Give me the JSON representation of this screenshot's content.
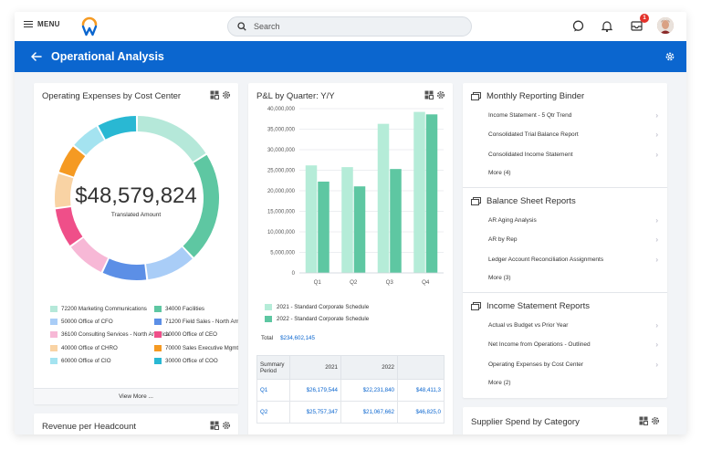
{
  "topbar": {
    "menu_label": "MENU",
    "search_placeholder": "Search",
    "inbox_badge": "1"
  },
  "header": {
    "title": "Operational Analysis"
  },
  "opex": {
    "title": "Operating Expenses by Cost Center",
    "center_value": "$48,579,824",
    "center_label": "Translated Amount",
    "view_more": "View More ...",
    "legend": [
      {
        "label": "72200 Marketing Communications",
        "color": "#b5e8d9"
      },
      {
        "label": "34000 Facilities",
        "color": "#5ec7a2"
      },
      {
        "label": "50000 Office of CFO",
        "color": "#a9cdf7"
      },
      {
        "label": "71200 Field Sales - North America",
        "color": "#5c8fe6"
      },
      {
        "label": "36100 Consulting Services - North America",
        "color": "#f7b8d6"
      },
      {
        "label": "10000 Office of CEO",
        "color": "#ef4f89"
      },
      {
        "label": "40000 Office of CHRO",
        "color": "#f9d3a4"
      },
      {
        "label": "70000 Sales Executive Mgmt",
        "color": "#f59a23"
      },
      {
        "label": "60000 Office of CIO",
        "color": "#a4e3f0"
      },
      {
        "label": "30000 Office of COO",
        "color": "#29b8d3"
      }
    ],
    "chart_data": {
      "type": "pie",
      "categories": [
        "72200 Marketing Communications",
        "34000 Facilities",
        "50000 Office of CFO",
        "71200 Field Sales - North America",
        "36100 Consulting Services - North America",
        "10000 Office of CEO",
        "40000 Office of CHRO",
        "70000 Sales Executive Mgmt",
        "60000 Office of CIO",
        "30000 Office of COO"
      ],
      "values": [
        16,
        22,
        10,
        9,
        8,
        8,
        7,
        6,
        6,
        8
      ]
    }
  },
  "revenue_card": {
    "title": "Revenue per Headcount"
  },
  "pl": {
    "title": "P&L by Quarter: Y/Y",
    "total_label": "Total",
    "total_value": "$234,602,145",
    "legend": [
      {
        "label": "2021 - Standard Corporate Schedule",
        "color": "#b5ecd8"
      },
      {
        "label": "2022 - Standard Corporate Schedule",
        "color": "#5ec7a2"
      }
    ],
    "table": {
      "headers": [
        "Summary Period",
        "2021",
        "2022",
        ""
      ],
      "rows": [
        [
          "Q1",
          "$26,179,544",
          "$22,231,840",
          "$48,411,3"
        ],
        [
          "Q2",
          "$25,757,347",
          "$21,067,662",
          "$46,825,0"
        ]
      ]
    },
    "chart_data": {
      "type": "bar",
      "categories": [
        "Q1",
        "Q2",
        "Q3",
        "Q4"
      ],
      "series": [
        {
          "name": "2021 - Standard Corporate Schedule",
          "values": [
            26179544,
            25757347,
            36300000,
            39200000
          ]
        },
        {
          "name": "2022 - Standard Corporate Schedule",
          "values": [
            22231840,
            21067662,
            25300000,
            38600000
          ]
        }
      ],
      "ylim": [
        0,
        40000000
      ],
      "yticks": [
        "0",
        "5,000,000",
        "10,000,000",
        "15,000,000",
        "20,000,000",
        "25,000,000",
        "30,000,000",
        "35,000,000",
        "40,000,000"
      ],
      "grid": true
    }
  },
  "reports": {
    "sections": [
      {
        "title": "Monthly Reporting Binder",
        "items": [
          "Income Statement - 5 Qtr Trend",
          "Consolidated Trial Balance Report",
          "Consolidated Income Statement"
        ],
        "more": "More (4)"
      },
      {
        "title": "Balance Sheet Reports",
        "items": [
          "AR Aging Analysis",
          "AR by Rep",
          "Ledger Account Reconciliation Assignments"
        ],
        "more": "More (3)"
      },
      {
        "title": "Income Statement Reports",
        "items": [
          "Actual vs Budget vs Prior Year",
          "Net Income from Operations - Outlined",
          "Operating Expenses by Cost Center"
        ],
        "more": "More (2)"
      }
    ]
  },
  "supplier_card": {
    "title": "Supplier Spend by Category"
  }
}
